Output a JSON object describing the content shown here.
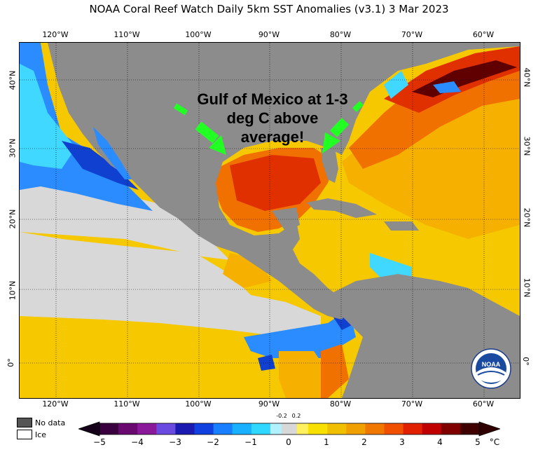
{
  "title": "NOAA Coral Reef Watch Daily 5km SST Anomalies  (v3.1)   3 Mar 2023",
  "annotation": {
    "lines": [
      "Gulf of Mexico at 1-3",
      "deg C above",
      "average!"
    ]
  },
  "lon_labels": [
    "120°W",
    "110°W",
    "100°W",
    "90°W",
    "80°W",
    "70°W",
    "60°W"
  ],
  "lat_labels": [
    "40°N",
    "30°N",
    "20°N",
    "10°N",
    "0°"
  ],
  "legend": {
    "no_data": "No data",
    "ice": "Ice",
    "no_data_color": "#555555",
    "ice_color": "#ffffff"
  },
  "colorbar": {
    "ticks": [
      "−5",
      "−4",
      "−3",
      "−2",
      "−1",
      "0",
      "1",
      "2",
      "3",
      "4",
      "5"
    ],
    "small_ticks": [
      "-0.2",
      "0.2"
    ],
    "unit": "°C",
    "colors": [
      "#3a0040",
      "#6a0a70",
      "#8a1a9a",
      "#5a3ad0",
      "#1a1ab0",
      "#1040e0",
      "#1880ff",
      "#18b0ff",
      "#30d8ff",
      "#b0f0ff",
      "#d8d8d8",
      "#fff060",
      "#f8e000",
      "#f0c000",
      "#f0a000",
      "#f07800",
      "#f05000",
      "#e02000",
      "#c00000",
      "#800000",
      "#400000"
    ],
    "background_color": "#d8d8d8"
  },
  "map_colors": {
    "land": "#8c8c8c",
    "neutral": "#d8d8d8",
    "warm_light": "#f5d000",
    "warm": "#f5b000",
    "hot": "#f07000",
    "very_hot": "#e03000",
    "extreme": "#600000",
    "cool": "#2a8cff",
    "cold": "#1040d0",
    "cyan": "#40d8ff",
    "arrow": "#22ff22"
  },
  "logo_text": "NOAA"
}
